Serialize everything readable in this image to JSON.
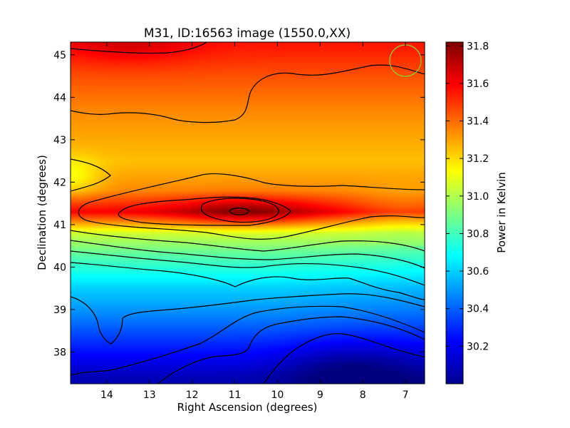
{
  "chart_data": {
    "type": "heatmap",
    "title": "M31, ID:16563 image (1550.0,XX)",
    "xlabel": "Right Ascension (degrees)",
    "ylabel": "Declination (degrees)",
    "xlim": [
      14.85,
      6.55
    ],
    "ylim": [
      37.25,
      45.3
    ],
    "x_ticks": [
      14,
      13,
      12,
      11,
      10,
      9,
      8,
      7
    ],
    "y_ticks": [
      38,
      39,
      40,
      41,
      42,
      43,
      44,
      45
    ],
    "colorbar": {
      "label": "Power in Kelvin",
      "min": 30.0,
      "max": 31.82,
      "ticks": [
        30.2,
        30.4,
        30.6,
        30.8,
        31.0,
        31.2,
        31.4,
        31.6,
        31.8
      ],
      "colormap": "jet"
    },
    "grid": false,
    "field_samples": {
      "dec_rows": [
        45.2,
        44.5,
        43.5,
        42.5,
        41.8,
        41.3,
        40.8,
        40.3,
        39.5,
        38.8,
        38.0,
        37.4
      ],
      "values": [
        31.55,
        31.45,
        31.33,
        31.25,
        31.35,
        31.6,
        31.05,
        30.85,
        30.6,
        30.45,
        30.25,
        30.1
      ]
    },
    "peak": {
      "ra": 10.8,
      "dec": 41.3,
      "value": 31.8
    },
    "minimum": {
      "ra": 8.3,
      "dec": 37.6,
      "value": 30.0
    },
    "contour_color": "#000000",
    "beam_marker": {
      "ra": 7.0,
      "dec": 44.85,
      "color": "#8fce2e"
    }
  }
}
